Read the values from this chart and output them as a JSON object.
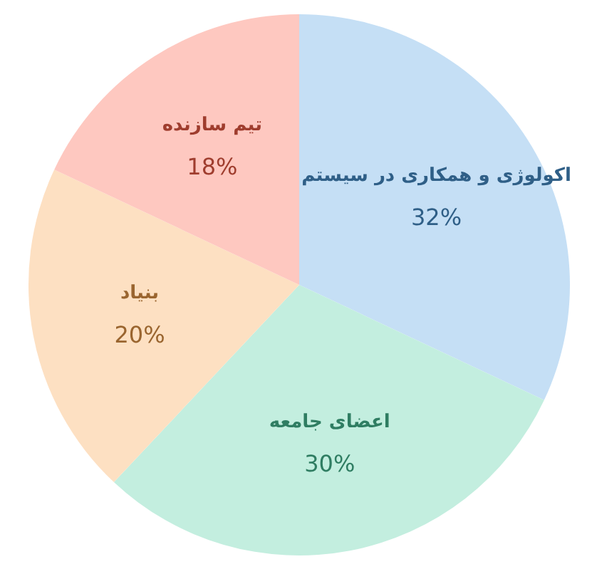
{
  "chart_data": {
    "type": "pie",
    "categories": [
      "اکولوژی و همکاری در سیستم",
      "اعضای جامعه",
      "بنیاد",
      "تیم سازنده"
    ],
    "values": [
      32,
      30,
      20,
      18
    ],
    "value_labels": [
      "32%",
      "30%",
      "20%",
      "18%"
    ],
    "colors": [
      "#c5dff5",
      "#c3eedf",
      "#fde0c2",
      "#fec8c0"
    ]
  }
}
